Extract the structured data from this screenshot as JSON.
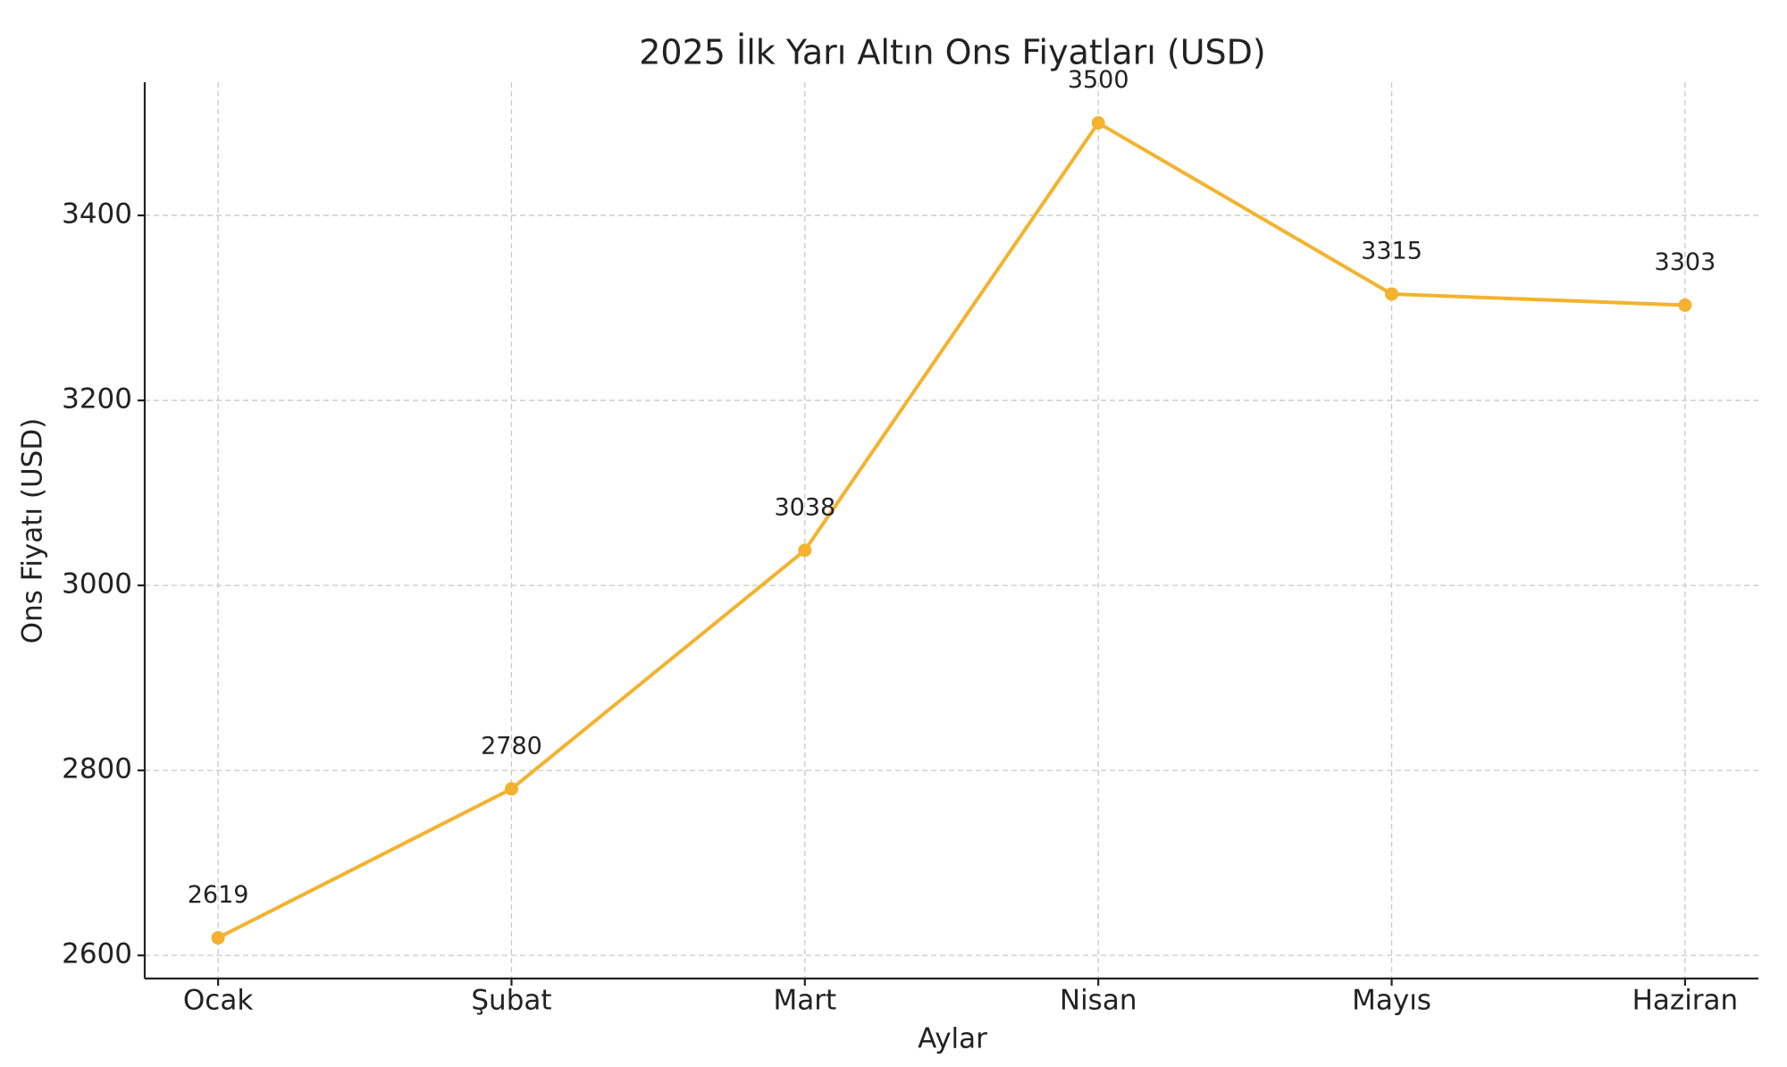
{
  "chart_data": {
    "type": "line",
    "title": "2025 İlk Yarı Altın Ons Fiyatları (USD)",
    "x_label": "Aylar",
    "y_label": "Ons Fiyatı (USD)",
    "categories": [
      "Ocak",
      "Şubat",
      "Mart",
      "Nisan",
      "Mayıs",
      "Haziran"
    ],
    "series": [
      {
        "name": "Ons Fiyatı",
        "color": "#f4b22e",
        "values": [
          2619,
          2780,
          3038,
          3500,
          3315,
          3303
        ]
      }
    ],
    "ylim": [
      2575,
      3544
    ],
    "yticks": [
      2600,
      2800,
      3000,
      3200,
      3400
    ],
    "grid": true
  }
}
